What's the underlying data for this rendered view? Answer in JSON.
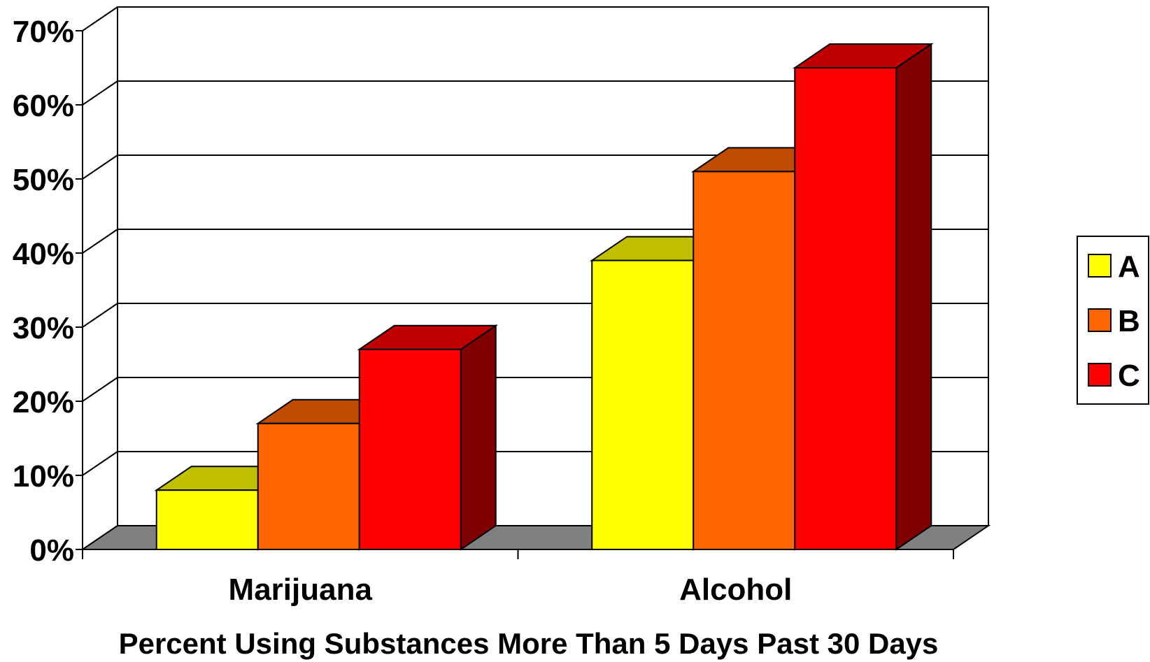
{
  "chart_data": {
    "type": "bar",
    "style": "3d-clustered",
    "title": "",
    "xlabel": "Percent Using Substances More Than 5 Days Past 30 Days",
    "ylabel": "",
    "categories": [
      "Marijuana",
      "Alcohol"
    ],
    "series": [
      {
        "name": "A",
        "values": [
          8,
          39
        ],
        "color": "#FFFF00",
        "top_color": "#C0C000",
        "side_color": "#808000"
      },
      {
        "name": "B",
        "values": [
          17,
          51
        ],
        "color": "#FF6600",
        "top_color": "#C04C00",
        "side_color": "#803300"
      },
      {
        "name": "C",
        "values": [
          27,
          65
        ],
        "color": "#FF0000",
        "top_color": "#C00000",
        "side_color": "#800000"
      }
    ],
    "ylim": [
      0,
      70
    ],
    "yticks": [
      0,
      10,
      20,
      30,
      40,
      50,
      60,
      70
    ],
    "ytick_labels": [
      "0%",
      "10%",
      "20%",
      "30%",
      "40%",
      "50%",
      "60%",
      "70%"
    ],
    "grid": true,
    "legend": {
      "position": "right",
      "entries": [
        "A",
        "B",
        "C"
      ]
    },
    "floor_color": "#808080"
  }
}
